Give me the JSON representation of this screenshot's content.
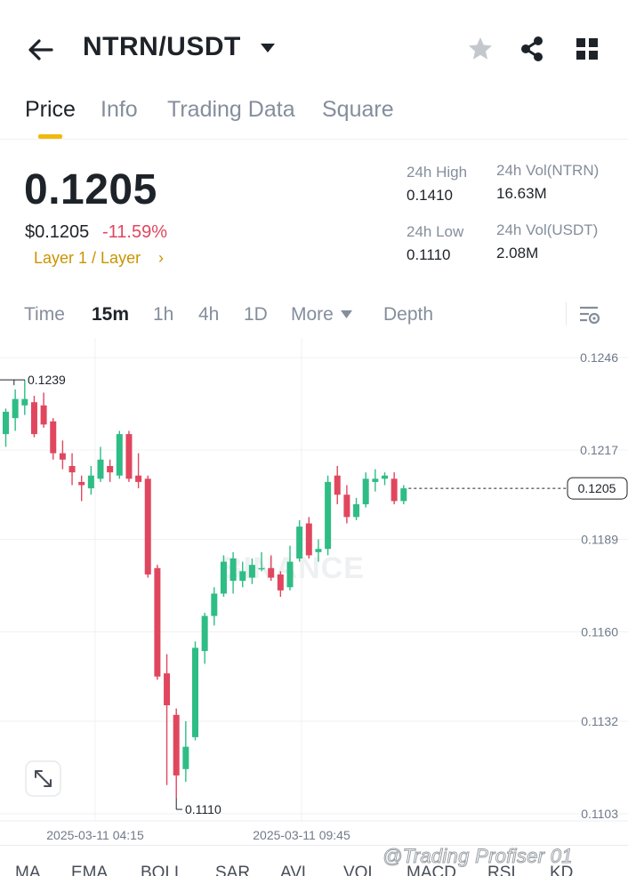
{
  "header": {
    "pair": "NTRN/USDT",
    "icons": [
      "back-arrow-icon",
      "caret-down-icon",
      "star-icon",
      "share-icon",
      "grid-icon"
    ]
  },
  "tabs": [
    {
      "label": "Price",
      "active": true
    },
    {
      "label": "Info",
      "active": false
    },
    {
      "label": "Trading Data",
      "active": false
    },
    {
      "label": "Square",
      "active": false
    }
  ],
  "price": {
    "last": "0.1205",
    "usd": "$0.1205",
    "change": "-11.59%",
    "sector": "Layer 1 / Layer",
    "sector_arrow": "›"
  },
  "stats": {
    "high_label": "24h High",
    "high_value": "0.1410",
    "low_label": "24h Low",
    "low_value": "0.1110",
    "vol_base_label": "24h Vol(NTRN)",
    "vol_base_value": "16.63M",
    "vol_quote_label": "24h Vol(USDT)",
    "vol_quote_value": "2.08M"
  },
  "intervals": [
    {
      "label": "Time",
      "active": false
    },
    {
      "label": "15m",
      "active": true
    },
    {
      "label": "1h",
      "active": false
    },
    {
      "label": "4h",
      "active": false
    },
    {
      "label": "1D",
      "active": false
    },
    {
      "label": "More",
      "active": false
    },
    {
      "label": "Depth",
      "active": false
    }
  ],
  "indicators": [
    "MA",
    "EMA",
    "BOLL",
    "SAR",
    "AVL",
    "VOL",
    "MACD",
    "RSI",
    "KD"
  ],
  "watermark_credit": "@Trading Profiser 01",
  "colors": {
    "up": "#2ebd85",
    "down": "#e0475f",
    "accent": "#f0b90b",
    "sector": "#c99400"
  },
  "chart_data": {
    "type": "candlestick",
    "watermark": "BINANCE",
    "y_ticks": [
      "0.1246",
      "0.1217",
      "0.1189",
      "0.1160",
      "0.1132",
      "0.1103"
    ],
    "x_ticks": [
      "2025-03-11 04:15",
      "2025-03-11 09:45"
    ],
    "max_label": "0.1239",
    "min_label": "0.1110",
    "last_price_label": "0.1205",
    "last_price": 0.1205,
    "candles": [
      {
        "o": 0.1222,
        "h": 0.123,
        "l": 0.1218,
        "c": 0.1229
      },
      {
        "o": 0.1227,
        "h": 0.1236,
        "l": 0.1223,
        "c": 0.1233
      },
      {
        "o": 0.1231,
        "h": 0.1239,
        "l": 0.1228,
        "c": 0.1233
      },
      {
        "o": 0.1232,
        "h": 0.1234,
        "l": 0.1221,
        "c": 0.1222
      },
      {
        "o": 0.1231,
        "h": 0.1235,
        "l": 0.1224,
        "c": 0.1225
      },
      {
        "o": 0.1226,
        "h": 0.1227,
        "l": 0.1214,
        "c": 0.1216
      },
      {
        "o": 0.1216,
        "h": 0.122,
        "l": 0.1211,
        "c": 0.1214
      },
      {
        "o": 0.1212,
        "h": 0.1216,
        "l": 0.1206,
        "c": 0.121
      },
      {
        "o": 0.1207,
        "h": 0.1209,
        "l": 0.1201,
        "c": 0.1206
      },
      {
        "o": 0.1205,
        "h": 0.1212,
        "l": 0.1203,
        "c": 0.1209
      },
      {
        "o": 0.1208,
        "h": 0.1218,
        "l": 0.1207,
        "c": 0.1214
      },
      {
        "o": 0.1212,
        "h": 0.1214,
        "l": 0.1207,
        "c": 0.121
      },
      {
        "o": 0.1209,
        "h": 0.1223,
        "l": 0.1208,
        "c": 0.1222
      },
      {
        "o": 0.1222,
        "h": 0.1223,
        "l": 0.1207,
        "c": 0.1208
      },
      {
        "o": 0.1209,
        "h": 0.1216,
        "l": 0.1205,
        "c": 0.1207
      },
      {
        "o": 0.1208,
        "h": 0.1209,
        "l": 0.1177,
        "c": 0.1178
      },
      {
        "o": 0.118,
        "h": 0.1181,
        "l": 0.1145,
        "c": 0.1146
      },
      {
        "o": 0.1147,
        "h": 0.1153,
        "l": 0.1112,
        "c": 0.1137
      },
      {
        "o": 0.1134,
        "h": 0.1136,
        "l": 0.1108,
        "c": 0.1115
      },
      {
        "o": 0.1117,
        "h": 0.1132,
        "l": 0.1113,
        "c": 0.1124
      },
      {
        "o": 0.1127,
        "h": 0.1157,
        "l": 0.1126,
        "c": 0.1155
      },
      {
        "o": 0.1154,
        "h": 0.1166,
        "l": 0.115,
        "c": 0.1165
      },
      {
        "o": 0.1165,
        "h": 0.1174,
        "l": 0.1162,
        "c": 0.1172
      },
      {
        "o": 0.1172,
        "h": 0.1184,
        "l": 0.1171,
        "c": 0.1182
      },
      {
        "o": 0.1176,
        "h": 0.1185,
        "l": 0.1172,
        "c": 0.1183
      },
      {
        "o": 0.1176,
        "h": 0.1182,
        "l": 0.1174,
        "c": 0.1179
      },
      {
        "o": 0.1177,
        "h": 0.1183,
        "l": 0.1175,
        "c": 0.1181
      },
      {
        "o": 0.118,
        "h": 0.1185,
        "l": 0.1179,
        "c": 0.118
      },
      {
        "o": 0.118,
        "h": 0.1184,
        "l": 0.1176,
        "c": 0.1177
      },
      {
        "o": 0.1178,
        "h": 0.1179,
        "l": 0.1171,
        "c": 0.1173
      },
      {
        "o": 0.1174,
        "h": 0.1187,
        "l": 0.1173,
        "c": 0.1182
      },
      {
        "o": 0.1183,
        "h": 0.1195,
        "l": 0.1182,
        "c": 0.1193
      },
      {
        "o": 0.1194,
        "h": 0.1196,
        "l": 0.1183,
        "c": 0.1184
      },
      {
        "o": 0.1185,
        "h": 0.1189,
        "l": 0.1182,
        "c": 0.1186
      },
      {
        "o": 0.1186,
        "h": 0.1209,
        "l": 0.1184,
        "c": 0.1207
      },
      {
        "o": 0.1209,
        "h": 0.1212,
        "l": 0.12,
        "c": 0.1203
      },
      {
        "o": 0.1203,
        "h": 0.1206,
        "l": 0.1194,
        "c": 0.1196
      },
      {
        "o": 0.1196,
        "h": 0.1202,
        "l": 0.1195,
        "c": 0.12
      },
      {
        "o": 0.12,
        "h": 0.121,
        "l": 0.1199,
        "c": 0.1208
      },
      {
        "o": 0.1207,
        "h": 0.1211,
        "l": 0.1204,
        "c": 0.1208
      },
      {
        "o": 0.1208,
        "h": 0.121,
        "l": 0.1206,
        "c": 0.1209
      },
      {
        "o": 0.1208,
        "h": 0.121,
        "l": 0.12,
        "c": 0.1201
      },
      {
        "o": 0.1201,
        "h": 0.1206,
        "l": 0.12,
        "c": 0.1205
      }
    ]
  }
}
